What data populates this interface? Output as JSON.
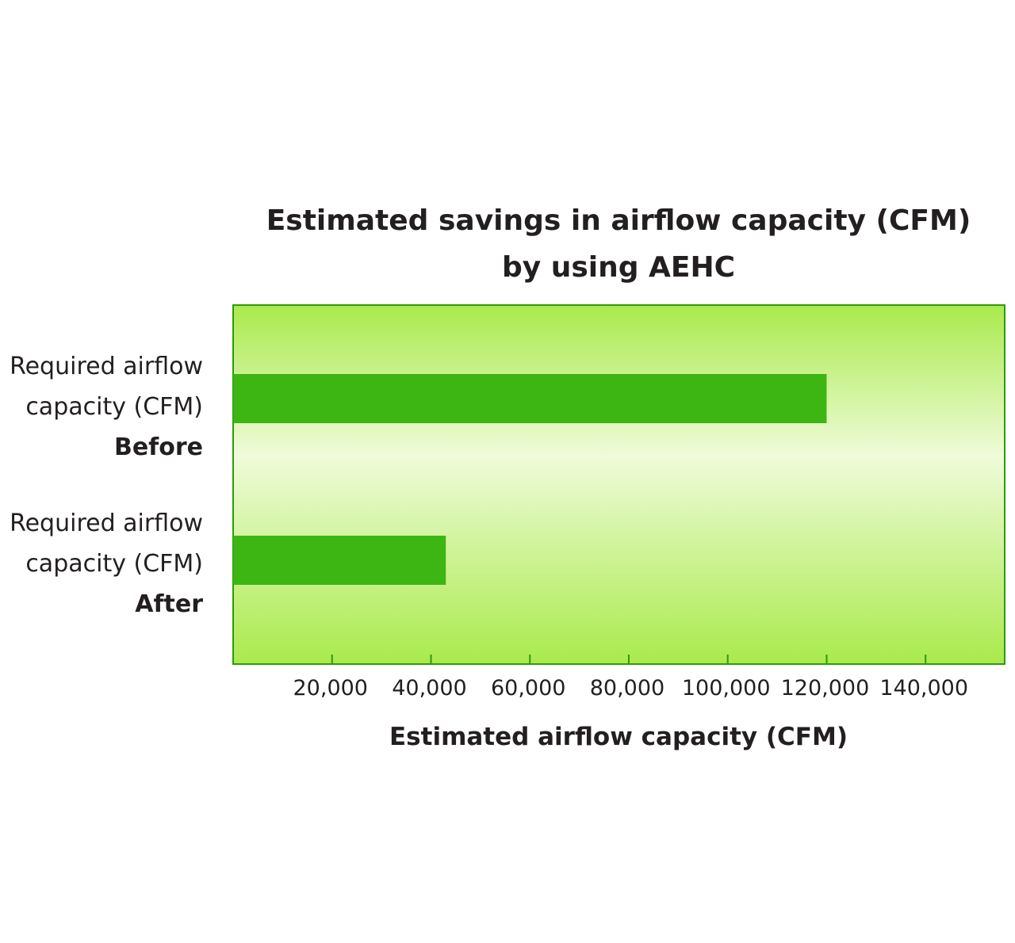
{
  "chart_data": {
    "type": "bar",
    "orientation": "horizontal",
    "title": "Estimated savings in airflow capacity (CFM)",
    "subtitle": "by using AEHC",
    "categories": [
      {
        "line1": "Required airflow",
        "line2": "capacity (CFM)",
        "line3": "Before"
      },
      {
        "line1": "Required airflow",
        "line2": "capacity (CFM)",
        "line3": "After"
      }
    ],
    "values": [
      120000,
      43000
    ],
    "xlabel": "Estimated airflow capacity (CFM)",
    "ylabel": "",
    "xlim": [
      0,
      156000
    ],
    "x_ticks": [
      20000,
      40000,
      60000,
      80000,
      100000,
      120000,
      140000
    ],
    "x_tick_labels": [
      "20,000",
      "40,000",
      "60,000",
      "80,000",
      "100,000",
      "120,000",
      "140,000"
    ],
    "grid": false,
    "legend": "none",
    "colors": {
      "bar": "#3db512",
      "frame": "#2f9a0c",
      "background_top": "#a9ea4c",
      "background_middle": "#effbd9",
      "background_bottom": "#a9ea4c"
    }
  }
}
